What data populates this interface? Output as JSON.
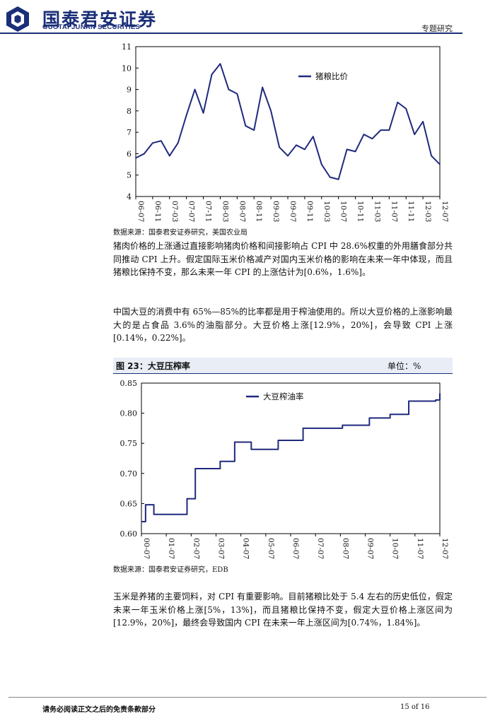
{
  "header": {
    "logo_cn": "国泰君安证券",
    "logo_en": "GUOTAI JUNAN SECURITIES",
    "section_tag": "专题研究",
    "brand_color": "#1b2f78"
  },
  "charts": [
    {
      "type": "line",
      "series_name": "猪粮比价",
      "ylim": [
        4,
        11
      ],
      "yticks": [
        "4",
        "5",
        "6",
        "7",
        "8",
        "9",
        "10",
        "11"
      ],
      "xticks": [
        "06-07",
        "06-11",
        "07-03",
        "07-07",
        "07-11",
        "08-03",
        "08-07",
        "08-11",
        "09-03",
        "09-07",
        "09-11",
        "10-03",
        "10-07",
        "10-11",
        "11-03",
        "11-07",
        "11-11",
        "12-03",
        "12-07"
      ],
      "line_color": "#1f2a7d",
      "source": "数据来源：国泰君安证券研究，美国农业局"
    },
    {
      "type": "line",
      "figure_title": "图 23：大豆压榨率",
      "unit": "单位：%",
      "series_name": "大豆榨油率",
      "ylim": [
        0.6,
        0.85
      ],
      "yticks": [
        "0.60",
        "0.65",
        "0.70",
        "0.75",
        "0.80",
        "0.85"
      ],
      "xticks": [
        "00-07",
        "01-07",
        "02-07",
        "03-07",
        "04-07",
        "05-07",
        "06-07",
        "07-07",
        "08-07",
        "09-07",
        "10-07",
        "11-07",
        "12-07"
      ],
      "line_color": "#1f2a7d",
      "source": "数据来源：国泰君安证券研究，EDB"
    }
  ],
  "chart_data": [
    {
      "type": "line",
      "title": "",
      "series": [
        {
          "name": "猪粮比价",
          "x": [
            "2006-07",
            "2006-09",
            "2006-11",
            "2007-01",
            "2007-03",
            "2007-05",
            "2007-07",
            "2007-09",
            "2007-11",
            "2008-01",
            "2008-03",
            "2008-05",
            "2008-07",
            "2008-09",
            "2008-11",
            "2009-01",
            "2009-03",
            "2009-05",
            "2009-07",
            "2009-09",
            "2009-11",
            "2010-01",
            "2010-03",
            "2010-05",
            "2010-07",
            "2010-09",
            "2010-11",
            "2011-01",
            "2011-03",
            "2011-05",
            "2011-07",
            "2011-09",
            "2011-11",
            "2012-01",
            "2012-03",
            "2012-05",
            "2012-07"
          ],
          "values": [
            5.8,
            6.0,
            6.5,
            6.6,
            5.9,
            6.5,
            7.8,
            9.0,
            7.9,
            9.7,
            10.2,
            9.0,
            8.8,
            7.3,
            7.1,
            9.1,
            8.0,
            6.3,
            5.9,
            6.4,
            6.2,
            6.8,
            5.5,
            4.9,
            4.8,
            6.2,
            6.1,
            6.9,
            6.7,
            7.1,
            7.1,
            8.4,
            8.1,
            6.9,
            7.5,
            5.9,
            5.5
          ]
        }
      ],
      "ylim": [
        4,
        11
      ],
      "legend": "top-center"
    },
    {
      "type": "line",
      "title": "图 23：大豆压榨率",
      "series": [
        {
          "name": "大豆榨油率",
          "x": [
            "2000-07",
            "2000-09",
            "2001-01",
            "2001-03",
            "2002-05",
            "2002-09",
            "2003-09",
            "2004-04",
            "2004-12",
            "2006-01",
            "2006-09",
            "2007-01",
            "2008-03",
            "2008-08",
            "2009-09",
            "2010-07",
            "2011-04",
            "2012-05",
            "2012-07"
          ],
          "values": [
            0.62,
            0.648,
            0.632,
            0.632,
            0.658,
            0.708,
            0.72,
            0.752,
            0.74,
            0.755,
            0.755,
            0.775,
            0.775,
            0.78,
            0.792,
            0.798,
            0.82,
            0.822,
            0.833
          ]
        }
      ],
      "ylim": [
        0.6,
        0.85
      ],
      "legend": "top-center"
    }
  ],
  "paragraphs": [
    "猪肉价格的上涨通过直接影响猪肉价格和间接影响占 CPI 中 28.6%权重的外用膳食部分共同推动 CPI 上升。假定国际玉米价格减产对国内玉米价格的影响在未来一年中体现，而且猪粮比保持不变，那么未来一年 CPI 的上涨估计为[0.6%，1.6%]。",
    "中国大豆的消费中有 65%—85%的比率都是用于榨油使用的。所以大豆价格的上涨影响最大的是占食品 3.6%的油脂部分。大豆价格上涨[12.9%，20%]，会导致 CPI 上涨[0.14%，0.22%]。",
    "玉米是养猪的主要饲料，对 CPI 有重要影响。目前猪粮比处于 5.4 左右的历史低位，假定未来一年玉米价格上涨[5%，13%]，而且猪粮比保持不变，假定大豆价格上涨区间为[12.9%，20%]，最终会导致国内 CPI 在未来一年上涨区间为[0.74%，1.84%]。"
  ],
  "footer": {
    "disclaimer": "请务必阅读正文之后的免责条款部分",
    "page": "15 of 16"
  }
}
